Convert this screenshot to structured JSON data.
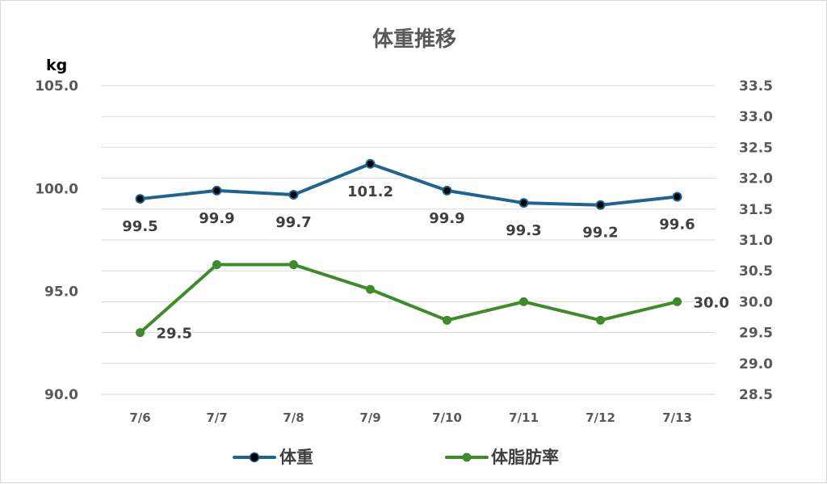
{
  "chart_data": {
    "type": "line",
    "title": "体重推移",
    "categories": [
      "7/6",
      "7/7",
      "7/8",
      "7/9",
      "7/10",
      "7/11",
      "7/12",
      "7/13"
    ],
    "y_left": {
      "unit_label": "kg",
      "ylim": [
        90.0,
        105.0
      ],
      "ticks": [
        "105.0",
        "100.0",
        "95.0",
        "90.0"
      ],
      "tick_values": [
        105.0,
        100.0,
        95.0,
        90.0
      ]
    },
    "y_right": {
      "ylim": [
        28.5,
        33.5
      ],
      "ticks": [
        "33.5",
        "33.0",
        "32.5",
        "32.0",
        "31.5",
        "31.0",
        "30.5",
        "30.0",
        "29.5",
        "29.0",
        "28.5"
      ],
      "tick_values": [
        33.5,
        33.0,
        32.5,
        32.0,
        31.5,
        31.0,
        30.5,
        30.0,
        29.5,
        29.0,
        28.5
      ]
    },
    "grid": true,
    "legend_position": "bottom",
    "series": [
      {
        "name": "体重",
        "axis": "left",
        "color": "#1f6391",
        "values": [
          99.5,
          99.9,
          99.7,
          101.2,
          99.9,
          99.3,
          99.2,
          99.6
        ],
        "labels": [
          "99.5",
          "99.9",
          "99.7",
          "101.2",
          "99.9",
          "99.3",
          "99.2",
          "99.6"
        ]
      },
      {
        "name": "体脂肪率",
        "axis": "right",
        "color": "#3f8a2a",
        "values": [
          29.5,
          30.6,
          30.6,
          30.2,
          29.7,
          30.0,
          29.7,
          30.0
        ],
        "labels": [
          "29.5",
          "",
          "",
          "",
          "",
          "",
          "",
          "30.0"
        ]
      }
    ]
  }
}
